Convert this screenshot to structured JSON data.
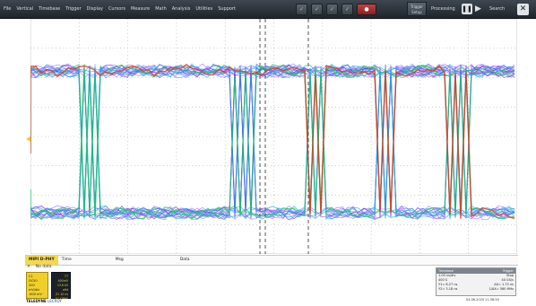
{
  "menu": {
    "items": [
      "File",
      "Vertical",
      "Timebase",
      "Trigger",
      "Display",
      "Cursors",
      "Measure",
      "Math",
      "Analysis",
      "Utilities",
      "Support"
    ],
    "trigger_setup": "Trigger Setup",
    "processing": "Processing",
    "search": "Search"
  },
  "status_bar": {
    "tabs": [
      "MIPI D-PHY",
      "Time",
      "Msg",
      "Data"
    ],
    "no_data": "No data"
  },
  "channel_badge": {
    "lines": [
      "C1",
      "DC50",
      "200 mV/div",
      "-600 mV"
    ]
  },
  "channel_box": {
    "lines": [
      "T7 400mV",
      "13.6 kV ofst",
      "Z1 10 ns",
      "D1 DPHY"
    ]
  },
  "logo": {
    "brand": "TELEDYNE",
    "sub": "LECROY"
  },
  "timebase": {
    "header": [
      "Timebase",
      "Trigger"
    ],
    "rows": [
      [
        "1.00 ns/div",
        "Stop"
      ],
      [
        "400 S",
        "40 GS/s"
      ],
      [
        "Edge",
        "Pos"
      ]
    ],
    "readout_rows": [
      [
        "Y1= 6.27 ns",
        "ΔX= 1.72 ns"
      ],
      [
        "Y2= 3.18 ns",
        "1/ΔX= 580 MHz"
      ]
    ]
  },
  "datetime": "04.06.2020 11:38:50",
  "colors": {
    "menubar": "#2b333b",
    "trace_primary": "#6a2cf0",
    "trace_dense": "#1fb0e0",
    "trace_hot": "#e0361f",
    "grid": "#9aa3ad",
    "channel_yellow": "#f0d028"
  }
}
